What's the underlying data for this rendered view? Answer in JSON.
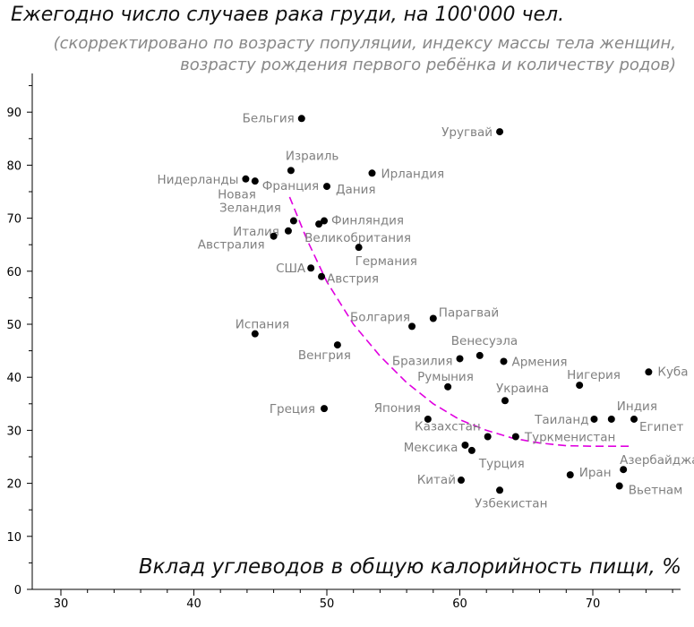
{
  "chart_data": {
    "type": "scatter",
    "title": "Ежегодно число случаев рака груди, на 100'000 чел.",
    "subtitle_lines": [
      "(скорректировано по возрасту популяции, индексу массы тела женщин,",
      "возрасту рождения первого ребёнка и количеству родов)"
    ],
    "xlabel": "Вклад углеводов в общую калорийность пищи, %",
    "ylabel": "",
    "xlim": [
      26,
      77
    ],
    "ylim": [
      0,
      97
    ],
    "x_ticks": [
      30,
      40,
      50,
      60,
      70
    ],
    "y_ticks": [
      0,
      10,
      20,
      30,
      40,
      50,
      60,
      70,
      80,
      90
    ],
    "grid": false,
    "point_color": "#000000",
    "label_color": "#808080",
    "trend_color": "#e000e0",
    "points": [
      {
        "label": "Бельгия",
        "x": 48.1,
        "y": 88.8
      },
      {
        "label": "Уругвай",
        "x": 63.0,
        "y": 86.3
      },
      {
        "label": "Израиль",
        "x": 47.3,
        "y": 79.0
      },
      {
        "label": "Нидерланды",
        "x": 43.9,
        "y": 77.4
      },
      {
        "label": "Франция",
        "x": 44.6,
        "y": 77.0
      },
      {
        "label": "Ирландия",
        "x": 53.4,
        "y": 78.5
      },
      {
        "label": "Дания",
        "x": 50.0,
        "y": 76.0
      },
      {
        "label": "Новая Зеландия",
        "x": 47.5,
        "y": 69.5
      },
      {
        "label": "Италия",
        "x": 47.1,
        "y": 67.6
      },
      {
        "label": "Финляндия",
        "x": 49.8,
        "y": 69.5
      },
      {
        "label": "Великобритания",
        "x": 49.4,
        "y": 68.9
      },
      {
        "label": "Австралия",
        "x": 46.0,
        "y": 66.6
      },
      {
        "label": "Германия",
        "x": 52.4,
        "y": 64.5
      },
      {
        "label": "США",
        "x": 48.8,
        "y": 60.6
      },
      {
        "label": "Австрия",
        "x": 49.6,
        "y": 59.0
      },
      {
        "label": "Болгария",
        "x": 56.4,
        "y": 49.6
      },
      {
        "label": "Парагвай",
        "x": 58.0,
        "y": 51.1
      },
      {
        "label": "Испания",
        "x": 44.6,
        "y": 48.2
      },
      {
        "label": "Венгрия",
        "x": 50.8,
        "y": 46.1
      },
      {
        "label": "Венесуэла",
        "x": 61.5,
        "y": 44.1
      },
      {
        "label": "Бразилия",
        "x": 60.0,
        "y": 43.5
      },
      {
        "label": "Армения",
        "x": 63.3,
        "y": 43.0
      },
      {
        "label": "Нигерия",
        "x": 69.0,
        "y": 38.5
      },
      {
        "label": "Куба",
        "x": 74.2,
        "y": 41.0
      },
      {
        "label": "Румыния",
        "x": 59.1,
        "y": 38.2
      },
      {
        "label": "Украина",
        "x": 63.4,
        "y": 35.6
      },
      {
        "label": "Греция",
        "x": 49.8,
        "y": 34.1
      },
      {
        "label": "Япония",
        "x": 57.6,
        "y": 32.1
      },
      {
        "label": "Таиланд",
        "x": 70.1,
        "y": 32.1
      },
      {
        "label": "Индия",
        "x": 71.4,
        "y": 32.1
      },
      {
        "label": "Египет",
        "x": 73.1,
        "y": 32.1
      },
      {
        "label": "Казахстан",
        "x": 62.1,
        "y": 28.8
      },
      {
        "label": "Туркменистан",
        "x": 64.2,
        "y": 28.8
      },
      {
        "label": "Мексика",
        "x": 60.4,
        "y": 27.2
      },
      {
        "label": "Турция",
        "x": 60.9,
        "y": 26.2
      },
      {
        "label": "Азербайджан",
        "x": 72.3,
        "y": 22.6
      },
      {
        "label": "Иран",
        "x": 68.3,
        "y": 21.6
      },
      {
        "label": "Китай",
        "x": 60.1,
        "y": 20.6
      },
      {
        "label": "Вьетнам",
        "x": 72.0,
        "y": 19.5
      },
      {
        "label": "Узбекистан",
        "x": 63.0,
        "y": 18.7
      }
    ],
    "trend": [
      {
        "x": 47.2,
        "y": 74.0
      },
      {
        "x": 48.5,
        "y": 66.0
      },
      {
        "x": 50.0,
        "y": 58.0
      },
      {
        "x": 52.0,
        "y": 50.0
      },
      {
        "x": 54.0,
        "y": 44.0
      },
      {
        "x": 56.0,
        "y": 39.0
      },
      {
        "x": 58.0,
        "y": 35.0
      },
      {
        "x": 60.0,
        "y": 32.0
      },
      {
        "x": 62.0,
        "y": 30.0
      },
      {
        "x": 64.0,
        "y": 28.5
      },
      {
        "x": 66.0,
        "y": 27.6
      },
      {
        "x": 68.0,
        "y": 27.1
      },
      {
        "x": 70.0,
        "y": 27.0
      },
      {
        "x": 72.8,
        "y": 27.0
      }
    ]
  }
}
